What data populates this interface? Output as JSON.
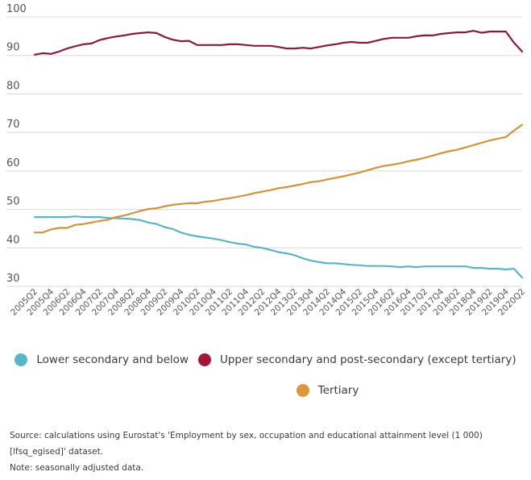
{
  "chart_data": {
    "type": "line",
    "title": "",
    "xlabel": "",
    "ylabel": "",
    "ylim": [
      30,
      100
    ],
    "yticks": [
      30,
      40,
      50,
      60,
      70,
      80,
      90,
      100
    ],
    "grid": true,
    "legend_position": "bottom",
    "x": [
      "2005Q2",
      "2005Q3",
      "2005Q4",
      "2006Q1",
      "2006Q2",
      "2006Q3",
      "2006Q4",
      "2007Q1",
      "2007Q2",
      "2007Q3",
      "2007Q4",
      "2008Q1",
      "2008Q2",
      "2008Q3",
      "2008Q4",
      "2009Q1",
      "2009Q2",
      "2009Q3",
      "2009Q4",
      "2010Q1",
      "2010Q2",
      "2010Q3",
      "2010Q4",
      "2011Q1",
      "2011Q2",
      "2011Q3",
      "2011Q4",
      "2012Q1",
      "2012Q2",
      "2012Q3",
      "2012Q4",
      "2013Q1",
      "2013Q2",
      "2013Q3",
      "2013Q4",
      "2014Q1",
      "2014Q2",
      "2014Q3",
      "2014Q4",
      "2015Q1",
      "2015Q2",
      "2015Q3",
      "2015Q4",
      "2016Q1",
      "2016Q2",
      "2016Q3",
      "2016Q4",
      "2017Q1",
      "2017Q2",
      "2017Q3",
      "2017Q4",
      "2018Q1",
      "2018Q2",
      "2018Q3",
      "2018Q4",
      "2019Q1",
      "2019Q2",
      "2019Q3",
      "2019Q4",
      "2020Q1",
      "2020Q2"
    ],
    "xtick_labels": [
      "2005Q2",
      "2005Q4",
      "2006Q2",
      "2006Q4",
      "2007Q2",
      "2007Q4",
      "2008Q2",
      "2008Q4",
      "2009Q2",
      "2009Q4",
      "2010Q2",
      "2010Q4",
      "2011Q2",
      "2011Q4",
      "2012Q2",
      "2012Q4",
      "2013Q2",
      "2013Q4",
      "2014Q2",
      "2014Q4",
      "2015Q2",
      "2015Q4",
      "2016Q2",
      "2016Q4",
      "2017Q2",
      "2017Q4",
      "2018Q2",
      "2018Q4",
      "2019Q2",
      "2019Q4",
      "2020Q2"
    ],
    "series": [
      {
        "name": "Lower secondary and below",
        "color": "#5bb5c9",
        "values": [
          48,
          48,
          48,
          48,
          48,
          48.2,
          48,
          48,
          48,
          47.8,
          47.7,
          47.6,
          47.5,
          47.2,
          46.6,
          46.2,
          45.4,
          44.9,
          44,
          43.4,
          43,
          42.7,
          42.4,
          42,
          41.5,
          41.1,
          40.9,
          40.3,
          40,
          39.5,
          38.9,
          38.6,
          38.1,
          37.3,
          36.7,
          36.3,
          36,
          36,
          35.8,
          35.6,
          35.5,
          35.3,
          35.3,
          35.3,
          35.2,
          35,
          35.2,
          35,
          35.2,
          35.2,
          35.2,
          35.2,
          35.2,
          35.2,
          34.8,
          34.8,
          34.6,
          34.6,
          34.4,
          34.6,
          32.3
        ]
      },
      {
        "name": "Upper secondary and post-secondary (except tertiary)",
        "color": "#8b1a3a",
        "values": [
          90.2,
          90.6,
          90.4,
          91,
          91.8,
          92.4,
          92.9,
          93.1,
          94,
          94.5,
          94.9,
          95.2,
          95.6,
          95.8,
          96,
          95.8,
          94.8,
          94.1,
          93.7,
          93.8,
          92.7,
          92.7,
          92.7,
          92.7,
          92.9,
          92.9,
          92.7,
          92.5,
          92.5,
          92.5,
          92.2,
          91.8,
          91.8,
          92,
          91.8,
          92.2,
          92.6,
          92.9,
          93.3,
          93.5,
          93.3,
          93.3,
          93.8,
          94.3,
          94.6,
          94.6,
          94.6,
          95,
          95.2,
          95.2,
          95.6,
          95.8,
          96,
          96,
          96.4,
          95.9,
          96.2,
          96.2,
          96.2,
          93.3,
          91
        ]
      },
      {
        "name": "Tertiary",
        "color": "#d4923d",
        "values": [
          44,
          44,
          44.8,
          45.2,
          45.2,
          46,
          46.2,
          46.6,
          47,
          47.3,
          48,
          48.4,
          49,
          49.6,
          50.1,
          50.3,
          50.8,
          51.2,
          51.4,
          51.6,
          51.6,
          52,
          52.2,
          52.6,
          52.9,
          53.3,
          53.7,
          54.2,
          54.6,
          55,
          55.5,
          55.8,
          56.2,
          56.6,
          57.1,
          57.3,
          57.8,
          58.2,
          58.6,
          59.1,
          59.6,
          60.2,
          60.8,
          61.3,
          61.6,
          62,
          62.5,
          62.9,
          63.4,
          64,
          64.6,
          65.1,
          65.5,
          66.1,
          66.7,
          67.3,
          67.9,
          68.4,
          68.8,
          70.5,
          72
        ]
      }
    ]
  },
  "legend": {
    "items": [
      {
        "label": "Lower secondary and below",
        "color": "#5bb5c9",
        "icon": "circle-marker-icon"
      },
      {
        "label": "Upper secondary and post-secondary (except tertiary)",
        "color": "#8b1a3a",
        "icon": "circle-marker-icon"
      },
      {
        "label": "Tertiary",
        "color": "#d4923d",
        "icon": "circle-marker-icon"
      }
    ]
  },
  "notes": {
    "source_line1": "Source: calculations using Eurostat's  'Employment by sex, occupation and educational attainment level  (1 000)",
    "source_line2": "[lfsq_egised]' dataset.",
    "note": "Note: seasonally adjusted data."
  }
}
